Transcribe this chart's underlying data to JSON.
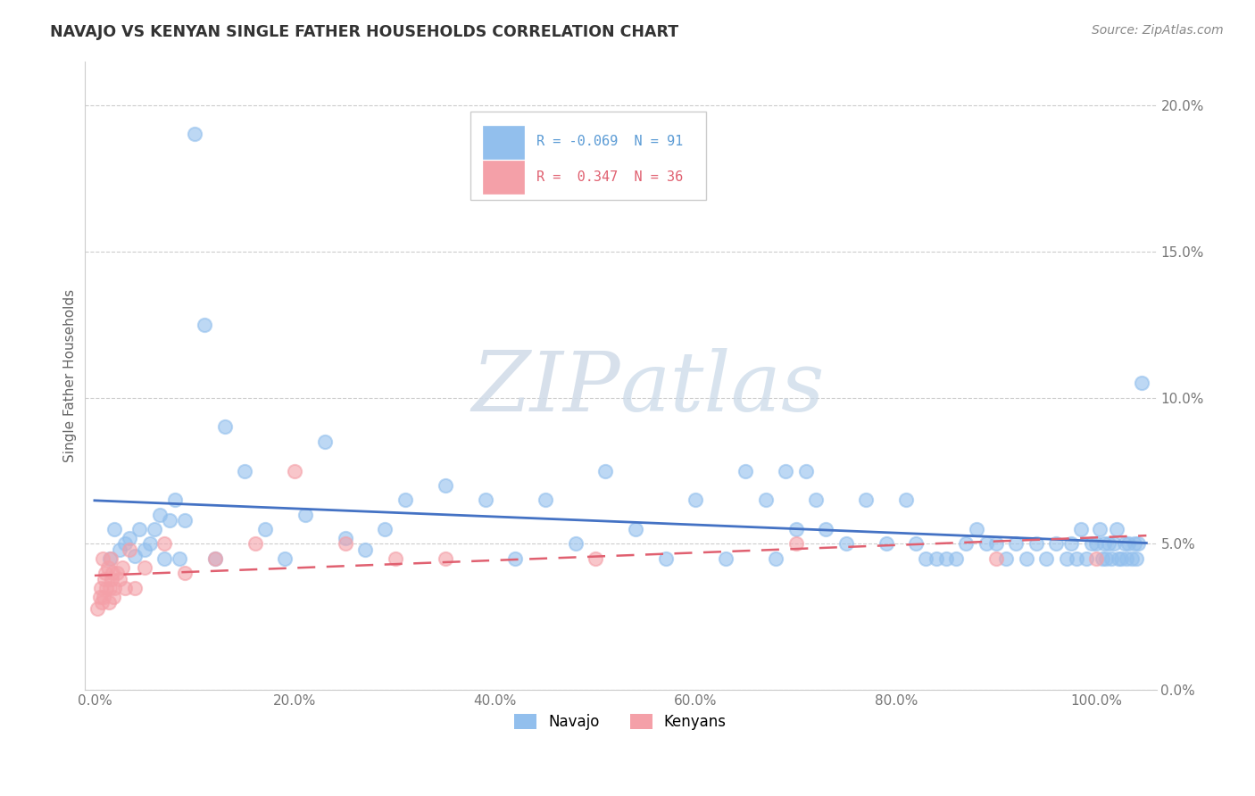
{
  "title": "NAVAJO VS KENYAN SINGLE FATHER HOUSEHOLDS CORRELATION CHART",
  "source": "Source: ZipAtlas.com",
  "ylabel": "Single Father Households",
  "navajo_r": -0.069,
  "navajo_n": 91,
  "kenyan_r": 0.347,
  "kenyan_n": 36,
  "navajo_color": "#92BFED",
  "kenyan_color": "#F4A0A8",
  "navajo_line_color": "#4472C4",
  "kenyan_line_color": "#E06070",
  "watermark_zip": "ZIP",
  "watermark_atlas": "atlas",
  "background_color": "#FFFFFF",
  "grid_color": "#CCCCCC",
  "navajo_x": [
    1.5,
    2.0,
    2.5,
    3.0,
    3.5,
    4.0,
    4.5,
    5.0,
    5.5,
    6.0,
    6.5,
    7.0,
    7.5,
    8.0,
    8.5,
    9.0,
    10.0,
    11.0,
    12.0,
    13.0,
    15.0,
    17.0,
    19.0,
    21.0,
    23.0,
    25.0,
    27.0,
    29.0,
    31.0,
    35.0,
    39.0,
    42.0,
    45.0,
    48.0,
    51.0,
    54.0,
    57.0,
    60.0,
    63.0,
    65.0,
    67.0,
    68.0,
    69.0,
    70.0,
    71.0,
    72.0,
    73.0,
    75.0,
    77.0,
    79.0,
    81.0,
    82.0,
    83.0,
    84.0,
    85.0,
    86.0,
    87.0,
    88.0,
    89.0,
    90.0,
    91.0,
    92.0,
    93.0,
    94.0,
    95.0,
    96.0,
    97.0,
    97.5,
    98.0,
    98.5,
    99.0,
    99.5,
    100.0,
    100.3,
    100.6,
    100.8,
    101.0,
    101.2,
    101.5,
    101.8,
    102.0,
    102.2,
    102.5,
    102.8,
    103.0,
    103.2,
    103.5,
    103.8,
    104.0,
    104.2,
    104.5
  ],
  "navajo_y": [
    4.5,
    5.5,
    4.8,
    5.0,
    5.2,
    4.6,
    5.5,
    4.8,
    5.0,
    5.5,
    6.0,
    4.5,
    5.8,
    6.5,
    4.5,
    5.8,
    19.0,
    12.5,
    4.5,
    9.0,
    7.5,
    5.5,
    4.5,
    6.0,
    8.5,
    5.2,
    4.8,
    5.5,
    6.5,
    7.0,
    6.5,
    4.5,
    6.5,
    5.0,
    7.5,
    5.5,
    4.5,
    6.5,
    4.5,
    7.5,
    6.5,
    4.5,
    7.5,
    5.5,
    7.5,
    6.5,
    5.5,
    5.0,
    6.5,
    5.0,
    6.5,
    5.0,
    4.5,
    4.5,
    4.5,
    4.5,
    5.0,
    5.5,
    5.0,
    5.0,
    4.5,
    5.0,
    4.5,
    5.0,
    4.5,
    5.0,
    4.5,
    5.0,
    4.5,
    5.5,
    4.5,
    5.0,
    5.0,
    5.5,
    4.5,
    5.0,
    4.5,
    5.0,
    4.5,
    5.0,
    5.5,
    4.5,
    4.5,
    5.0,
    4.5,
    5.0,
    4.5,
    5.0,
    4.5,
    5.0,
    10.5
  ],
  "kenyan_x": [
    0.3,
    0.5,
    0.6,
    0.7,
    0.8,
    0.9,
    1.0,
    1.1,
    1.2,
    1.3,
    1.4,
    1.5,
    1.6,
    1.7,
    1.8,
    1.9,
    2.0,
    2.2,
    2.5,
    2.8,
    3.0,
    3.5,
    4.0,
    5.0,
    7.0,
    9.0,
    12.0,
    16.0,
    20.0,
    25.0,
    30.0,
    35.0,
    50.0,
    70.0,
    90.0,
    100.0
  ],
  "kenyan_y": [
    2.8,
    3.2,
    3.5,
    3.0,
    4.5,
    3.2,
    3.8,
    4.0,
    3.5,
    4.2,
    3.0,
    3.5,
    4.5,
    3.8,
    4.0,
    3.2,
    3.5,
    4.0,
    3.8,
    4.2,
    3.5,
    4.8,
    3.5,
    4.2,
    5.0,
    4.0,
    4.5,
    5.0,
    7.5,
    5.0,
    4.5,
    4.5,
    4.5,
    5.0,
    4.5,
    4.5
  ]
}
